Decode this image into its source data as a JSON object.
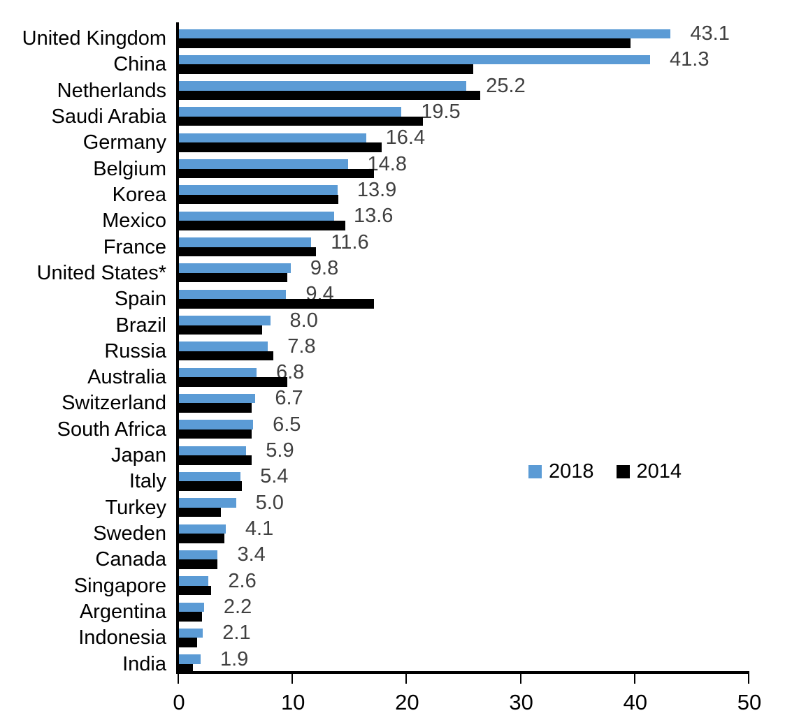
{
  "chart_data": {
    "type": "bar",
    "orientation": "horizontal",
    "title": "",
    "categories": [
      "United Kingdom",
      "China",
      "Netherlands",
      "Saudi Arabia",
      "Germany",
      "Belgium",
      "Korea",
      "Mexico",
      "France",
      "United States*",
      "Spain",
      "Brazil",
      "Russia",
      "Australia",
      "Switzerland",
      "South Africa",
      "Japan",
      "Italy",
      "Turkey",
      "Sweden",
      "Canada",
      "Singapore",
      "Argentina",
      "Indonesia",
      "India"
    ],
    "series": [
      {
        "name": "2018",
        "color": "#5B9BD5",
        "values": [
          43.1,
          41.3,
          25.2,
          19.5,
          16.4,
          14.8,
          13.9,
          13.6,
          11.6,
          9.8,
          9.4,
          8.0,
          7.8,
          6.8,
          6.7,
          6.5,
          5.9,
          5.4,
          5.0,
          4.1,
          3.4,
          2.6,
          2.2,
          2.1,
          1.9
        ]
      },
      {
        "name": "2014",
        "color": "#000000",
        "values": [
          39.6,
          25.8,
          26.4,
          21.4,
          17.8,
          17.1,
          14.0,
          14.6,
          12.0,
          9.5,
          17.1,
          7.3,
          8.3,
          9.5,
          6.4,
          6.4,
          6.4,
          5.5,
          3.7,
          4.0,
          3.4,
          2.8,
          2.0,
          1.6,
          1.2
        ]
      }
    ],
    "value_labels": [
      "43.1",
      "41.3",
      "25.2",
      "19.5",
      "16.4",
      "14.8",
      "13.9",
      "13.6",
      "11.6",
      "9.8",
      "9.4",
      "8.0",
      "7.8",
      "6.8",
      "6.7",
      "6.5",
      "5.9",
      "5.4",
      "5.0",
      "4.1",
      "3.4",
      "2.6",
      "2.2",
      "2.1",
      "1.9"
    ],
    "value_labels_series": "2018",
    "xlabel": "",
    "ylabel": "",
    "xlim": [
      0,
      50
    ],
    "x_ticks": [
      "0",
      "10",
      "20",
      "30",
      "40",
      "50"
    ],
    "grid": false,
    "legend": {
      "position": "middle-right",
      "entries": [
        {
          "label": "2018",
          "color": "#5B9BD5"
        },
        {
          "label": "2014",
          "color": "#000000"
        }
      ]
    },
    "colors": {
      "value_label_text": "#404040",
      "category_text": "#000000",
      "axis": "#000000",
      "background": "#FFFFFF"
    }
  }
}
